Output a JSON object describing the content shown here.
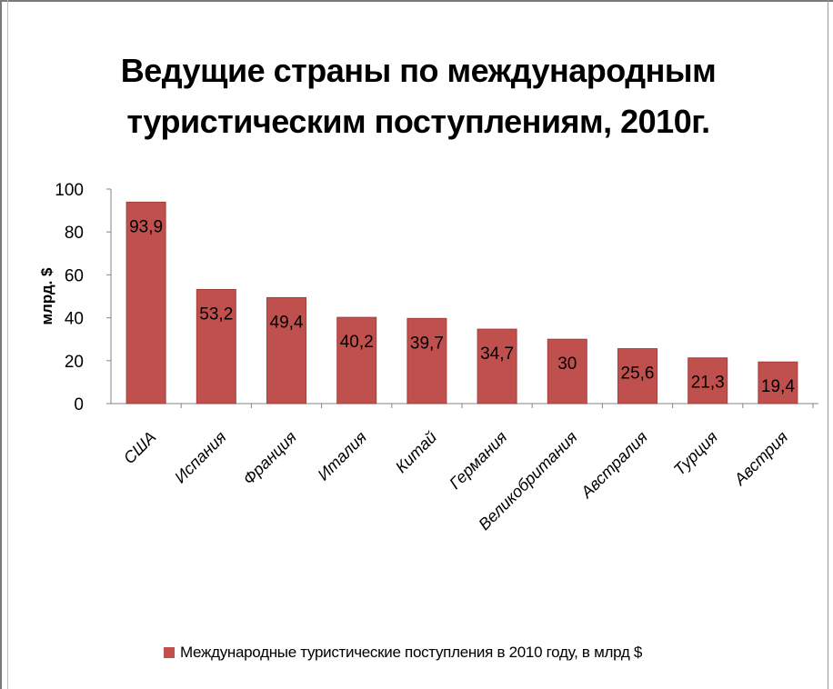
{
  "title_lines": [
    "Ведущие страны по международным",
    "туристическим поступлениям, 2010г."
  ],
  "colors": {
    "bar": "#c0504d",
    "bar_edge": "#a33f3c",
    "axis": "#868686"
  },
  "chart_data": {
    "type": "bar",
    "title": "Ведущие страны по международным туристическим поступлениям, 2010г.",
    "ylabel": "млрд. $",
    "xlabel": "",
    "ylim": [
      0,
      100
    ],
    "yticks": [
      0,
      20,
      40,
      60,
      80,
      100
    ],
    "categories": [
      "США",
      "Испания",
      "Франция",
      "Италия",
      "Китай",
      "Германия",
      "Великобритания",
      "Австралия",
      "Турция",
      "Австрия"
    ],
    "series": [
      {
        "name": "Международные туристические поступления в 2010 году, в млрд $",
        "values": [
          93.9,
          53.2,
          49.4,
          40.2,
          39.7,
          34.7,
          30,
          25.6,
          21.3,
          19.4
        ],
        "labels": [
          "93,9",
          "53,2",
          "49,4",
          "40,2",
          "39,7",
          "34,7",
          "30",
          "25,6",
          "21,3",
          "19,4"
        ]
      }
    ],
    "grid": false,
    "legend_position": "bottom"
  }
}
